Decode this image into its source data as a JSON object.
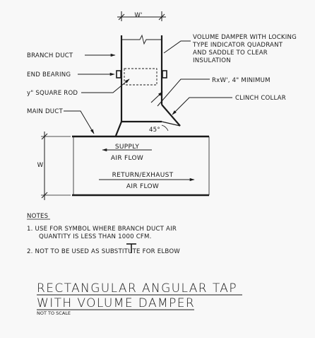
{
  "labels": {
    "dim_w": "W'",
    "dim_rxw": "RxW', 4\" MINIMUM",
    "dim_w_side": "W",
    "angle": "45°",
    "volume_damper": [
      "VOLUME DAMPER WITH LOCKING",
      "TYPE INDICATOR QUADRANT",
      "AND SADDLE TO CLEAR",
      "INSULATION"
    ],
    "branch_duct": "BRANCH DUCT",
    "end_bearing": "END BEARING",
    "square_rod": "y\" SQUARE ROD",
    "main_duct": "MAIN DUCT",
    "clinch_collar": "CLINCH COLLAR"
  },
  "flow": {
    "supply_line1": "SUPPLY",
    "supply_line2": "AIR FLOW",
    "return_line1": "RETURN/EXHAUST",
    "return_line2": "AIR FLOW"
  },
  "notes": {
    "heading": "NOTES",
    "note1_a": "1.  USE FOR SYMBOL       WHERE BRANCH DUCT AIR",
    "note1_b": "QUANTITY IS LESS THAN 1000 CFM.",
    "note2": "2.  NOT TO BE USED AS SUBSTITUTE FOR ELBOW"
  },
  "title": {
    "line1": "RECTANGULAR ANGULAR TAP",
    "line2": "WITH VOLUME DAMPER",
    "scale": "NOT TO SCALE"
  }
}
